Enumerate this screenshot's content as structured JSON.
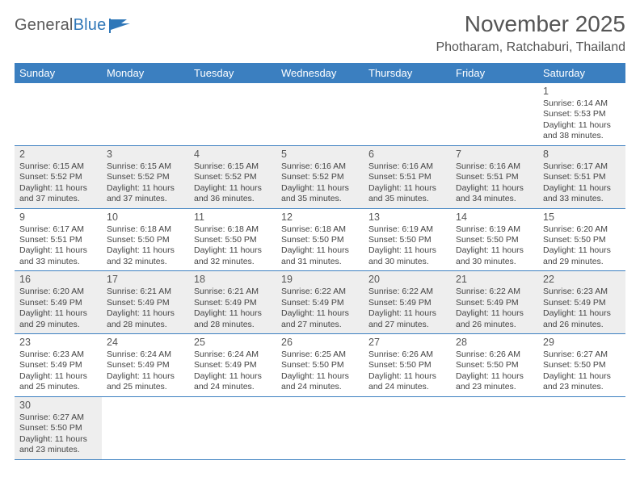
{
  "logo": {
    "text_a": "General",
    "text_b": "Blue",
    "color_gray": "#5a5a5a",
    "color_blue": "#2f77b8"
  },
  "title": "November 2025",
  "location": "Photharam, Ratchaburi, Thailand",
  "colors": {
    "header_bg": "#3b7fc0",
    "header_text": "#ffffff",
    "border": "#3b7fc0",
    "shaded_bg": "#eeeeee",
    "text": "#444444",
    "title_text": "#555555"
  },
  "dow": [
    "Sunday",
    "Monday",
    "Tuesday",
    "Wednesday",
    "Thursday",
    "Friday",
    "Saturday"
  ],
  "weeks": [
    [
      null,
      null,
      null,
      null,
      null,
      null,
      {
        "n": "1",
        "shaded": false,
        "sunrise": "Sunrise: 6:14 AM",
        "sunset": "Sunset: 5:53 PM",
        "day1": "Daylight: 11 hours",
        "day2": "and 38 minutes."
      }
    ],
    [
      {
        "n": "2",
        "shaded": true,
        "sunrise": "Sunrise: 6:15 AM",
        "sunset": "Sunset: 5:52 PM",
        "day1": "Daylight: 11 hours",
        "day2": "and 37 minutes."
      },
      {
        "n": "3",
        "shaded": true,
        "sunrise": "Sunrise: 6:15 AM",
        "sunset": "Sunset: 5:52 PM",
        "day1": "Daylight: 11 hours",
        "day2": "and 37 minutes."
      },
      {
        "n": "4",
        "shaded": true,
        "sunrise": "Sunrise: 6:15 AM",
        "sunset": "Sunset: 5:52 PM",
        "day1": "Daylight: 11 hours",
        "day2": "and 36 minutes."
      },
      {
        "n": "5",
        "shaded": true,
        "sunrise": "Sunrise: 6:16 AM",
        "sunset": "Sunset: 5:52 PM",
        "day1": "Daylight: 11 hours",
        "day2": "and 35 minutes."
      },
      {
        "n": "6",
        "shaded": true,
        "sunrise": "Sunrise: 6:16 AM",
        "sunset": "Sunset: 5:51 PM",
        "day1": "Daylight: 11 hours",
        "day2": "and 35 minutes."
      },
      {
        "n": "7",
        "shaded": true,
        "sunrise": "Sunrise: 6:16 AM",
        "sunset": "Sunset: 5:51 PM",
        "day1": "Daylight: 11 hours",
        "day2": "and 34 minutes."
      },
      {
        "n": "8",
        "shaded": true,
        "sunrise": "Sunrise: 6:17 AM",
        "sunset": "Sunset: 5:51 PM",
        "day1": "Daylight: 11 hours",
        "day2": "and 33 minutes."
      }
    ],
    [
      {
        "n": "9",
        "shaded": false,
        "sunrise": "Sunrise: 6:17 AM",
        "sunset": "Sunset: 5:51 PM",
        "day1": "Daylight: 11 hours",
        "day2": "and 33 minutes."
      },
      {
        "n": "10",
        "shaded": false,
        "sunrise": "Sunrise: 6:18 AM",
        "sunset": "Sunset: 5:50 PM",
        "day1": "Daylight: 11 hours",
        "day2": "and 32 minutes."
      },
      {
        "n": "11",
        "shaded": false,
        "sunrise": "Sunrise: 6:18 AM",
        "sunset": "Sunset: 5:50 PM",
        "day1": "Daylight: 11 hours",
        "day2": "and 32 minutes."
      },
      {
        "n": "12",
        "shaded": false,
        "sunrise": "Sunrise: 6:18 AM",
        "sunset": "Sunset: 5:50 PM",
        "day1": "Daylight: 11 hours",
        "day2": "and 31 minutes."
      },
      {
        "n": "13",
        "shaded": false,
        "sunrise": "Sunrise: 6:19 AM",
        "sunset": "Sunset: 5:50 PM",
        "day1": "Daylight: 11 hours",
        "day2": "and 30 minutes."
      },
      {
        "n": "14",
        "shaded": false,
        "sunrise": "Sunrise: 6:19 AM",
        "sunset": "Sunset: 5:50 PM",
        "day1": "Daylight: 11 hours",
        "day2": "and 30 minutes."
      },
      {
        "n": "15",
        "shaded": false,
        "sunrise": "Sunrise: 6:20 AM",
        "sunset": "Sunset: 5:50 PM",
        "day1": "Daylight: 11 hours",
        "day2": "and 29 minutes."
      }
    ],
    [
      {
        "n": "16",
        "shaded": true,
        "sunrise": "Sunrise: 6:20 AM",
        "sunset": "Sunset: 5:49 PM",
        "day1": "Daylight: 11 hours",
        "day2": "and 29 minutes."
      },
      {
        "n": "17",
        "shaded": true,
        "sunrise": "Sunrise: 6:21 AM",
        "sunset": "Sunset: 5:49 PM",
        "day1": "Daylight: 11 hours",
        "day2": "and 28 minutes."
      },
      {
        "n": "18",
        "shaded": true,
        "sunrise": "Sunrise: 6:21 AM",
        "sunset": "Sunset: 5:49 PM",
        "day1": "Daylight: 11 hours",
        "day2": "and 28 minutes."
      },
      {
        "n": "19",
        "shaded": true,
        "sunrise": "Sunrise: 6:22 AM",
        "sunset": "Sunset: 5:49 PM",
        "day1": "Daylight: 11 hours",
        "day2": "and 27 minutes."
      },
      {
        "n": "20",
        "shaded": true,
        "sunrise": "Sunrise: 6:22 AM",
        "sunset": "Sunset: 5:49 PM",
        "day1": "Daylight: 11 hours",
        "day2": "and 27 minutes."
      },
      {
        "n": "21",
        "shaded": true,
        "sunrise": "Sunrise: 6:22 AM",
        "sunset": "Sunset: 5:49 PM",
        "day1": "Daylight: 11 hours",
        "day2": "and 26 minutes."
      },
      {
        "n": "22",
        "shaded": true,
        "sunrise": "Sunrise: 6:23 AM",
        "sunset": "Sunset: 5:49 PM",
        "day1": "Daylight: 11 hours",
        "day2": "and 26 minutes."
      }
    ],
    [
      {
        "n": "23",
        "shaded": false,
        "sunrise": "Sunrise: 6:23 AM",
        "sunset": "Sunset: 5:49 PM",
        "day1": "Daylight: 11 hours",
        "day2": "and 25 minutes."
      },
      {
        "n": "24",
        "shaded": false,
        "sunrise": "Sunrise: 6:24 AM",
        "sunset": "Sunset: 5:49 PM",
        "day1": "Daylight: 11 hours",
        "day2": "and 25 minutes."
      },
      {
        "n": "25",
        "shaded": false,
        "sunrise": "Sunrise: 6:24 AM",
        "sunset": "Sunset: 5:49 PM",
        "day1": "Daylight: 11 hours",
        "day2": "and 24 minutes."
      },
      {
        "n": "26",
        "shaded": false,
        "sunrise": "Sunrise: 6:25 AM",
        "sunset": "Sunset: 5:50 PM",
        "day1": "Daylight: 11 hours",
        "day2": "and 24 minutes."
      },
      {
        "n": "27",
        "shaded": false,
        "sunrise": "Sunrise: 6:26 AM",
        "sunset": "Sunset: 5:50 PM",
        "day1": "Daylight: 11 hours",
        "day2": "and 24 minutes."
      },
      {
        "n": "28",
        "shaded": false,
        "sunrise": "Sunrise: 6:26 AM",
        "sunset": "Sunset: 5:50 PM",
        "day1": "Daylight: 11 hours",
        "day2": "and 23 minutes."
      },
      {
        "n": "29",
        "shaded": false,
        "sunrise": "Sunrise: 6:27 AM",
        "sunset": "Sunset: 5:50 PM",
        "day1": "Daylight: 11 hours",
        "day2": "and 23 minutes."
      }
    ],
    [
      {
        "n": "30",
        "shaded": true,
        "sunrise": "Sunrise: 6:27 AM",
        "sunset": "Sunset: 5:50 PM",
        "day1": "Daylight: 11 hours",
        "day2": "and 23 minutes."
      },
      null,
      null,
      null,
      null,
      null,
      null
    ]
  ]
}
